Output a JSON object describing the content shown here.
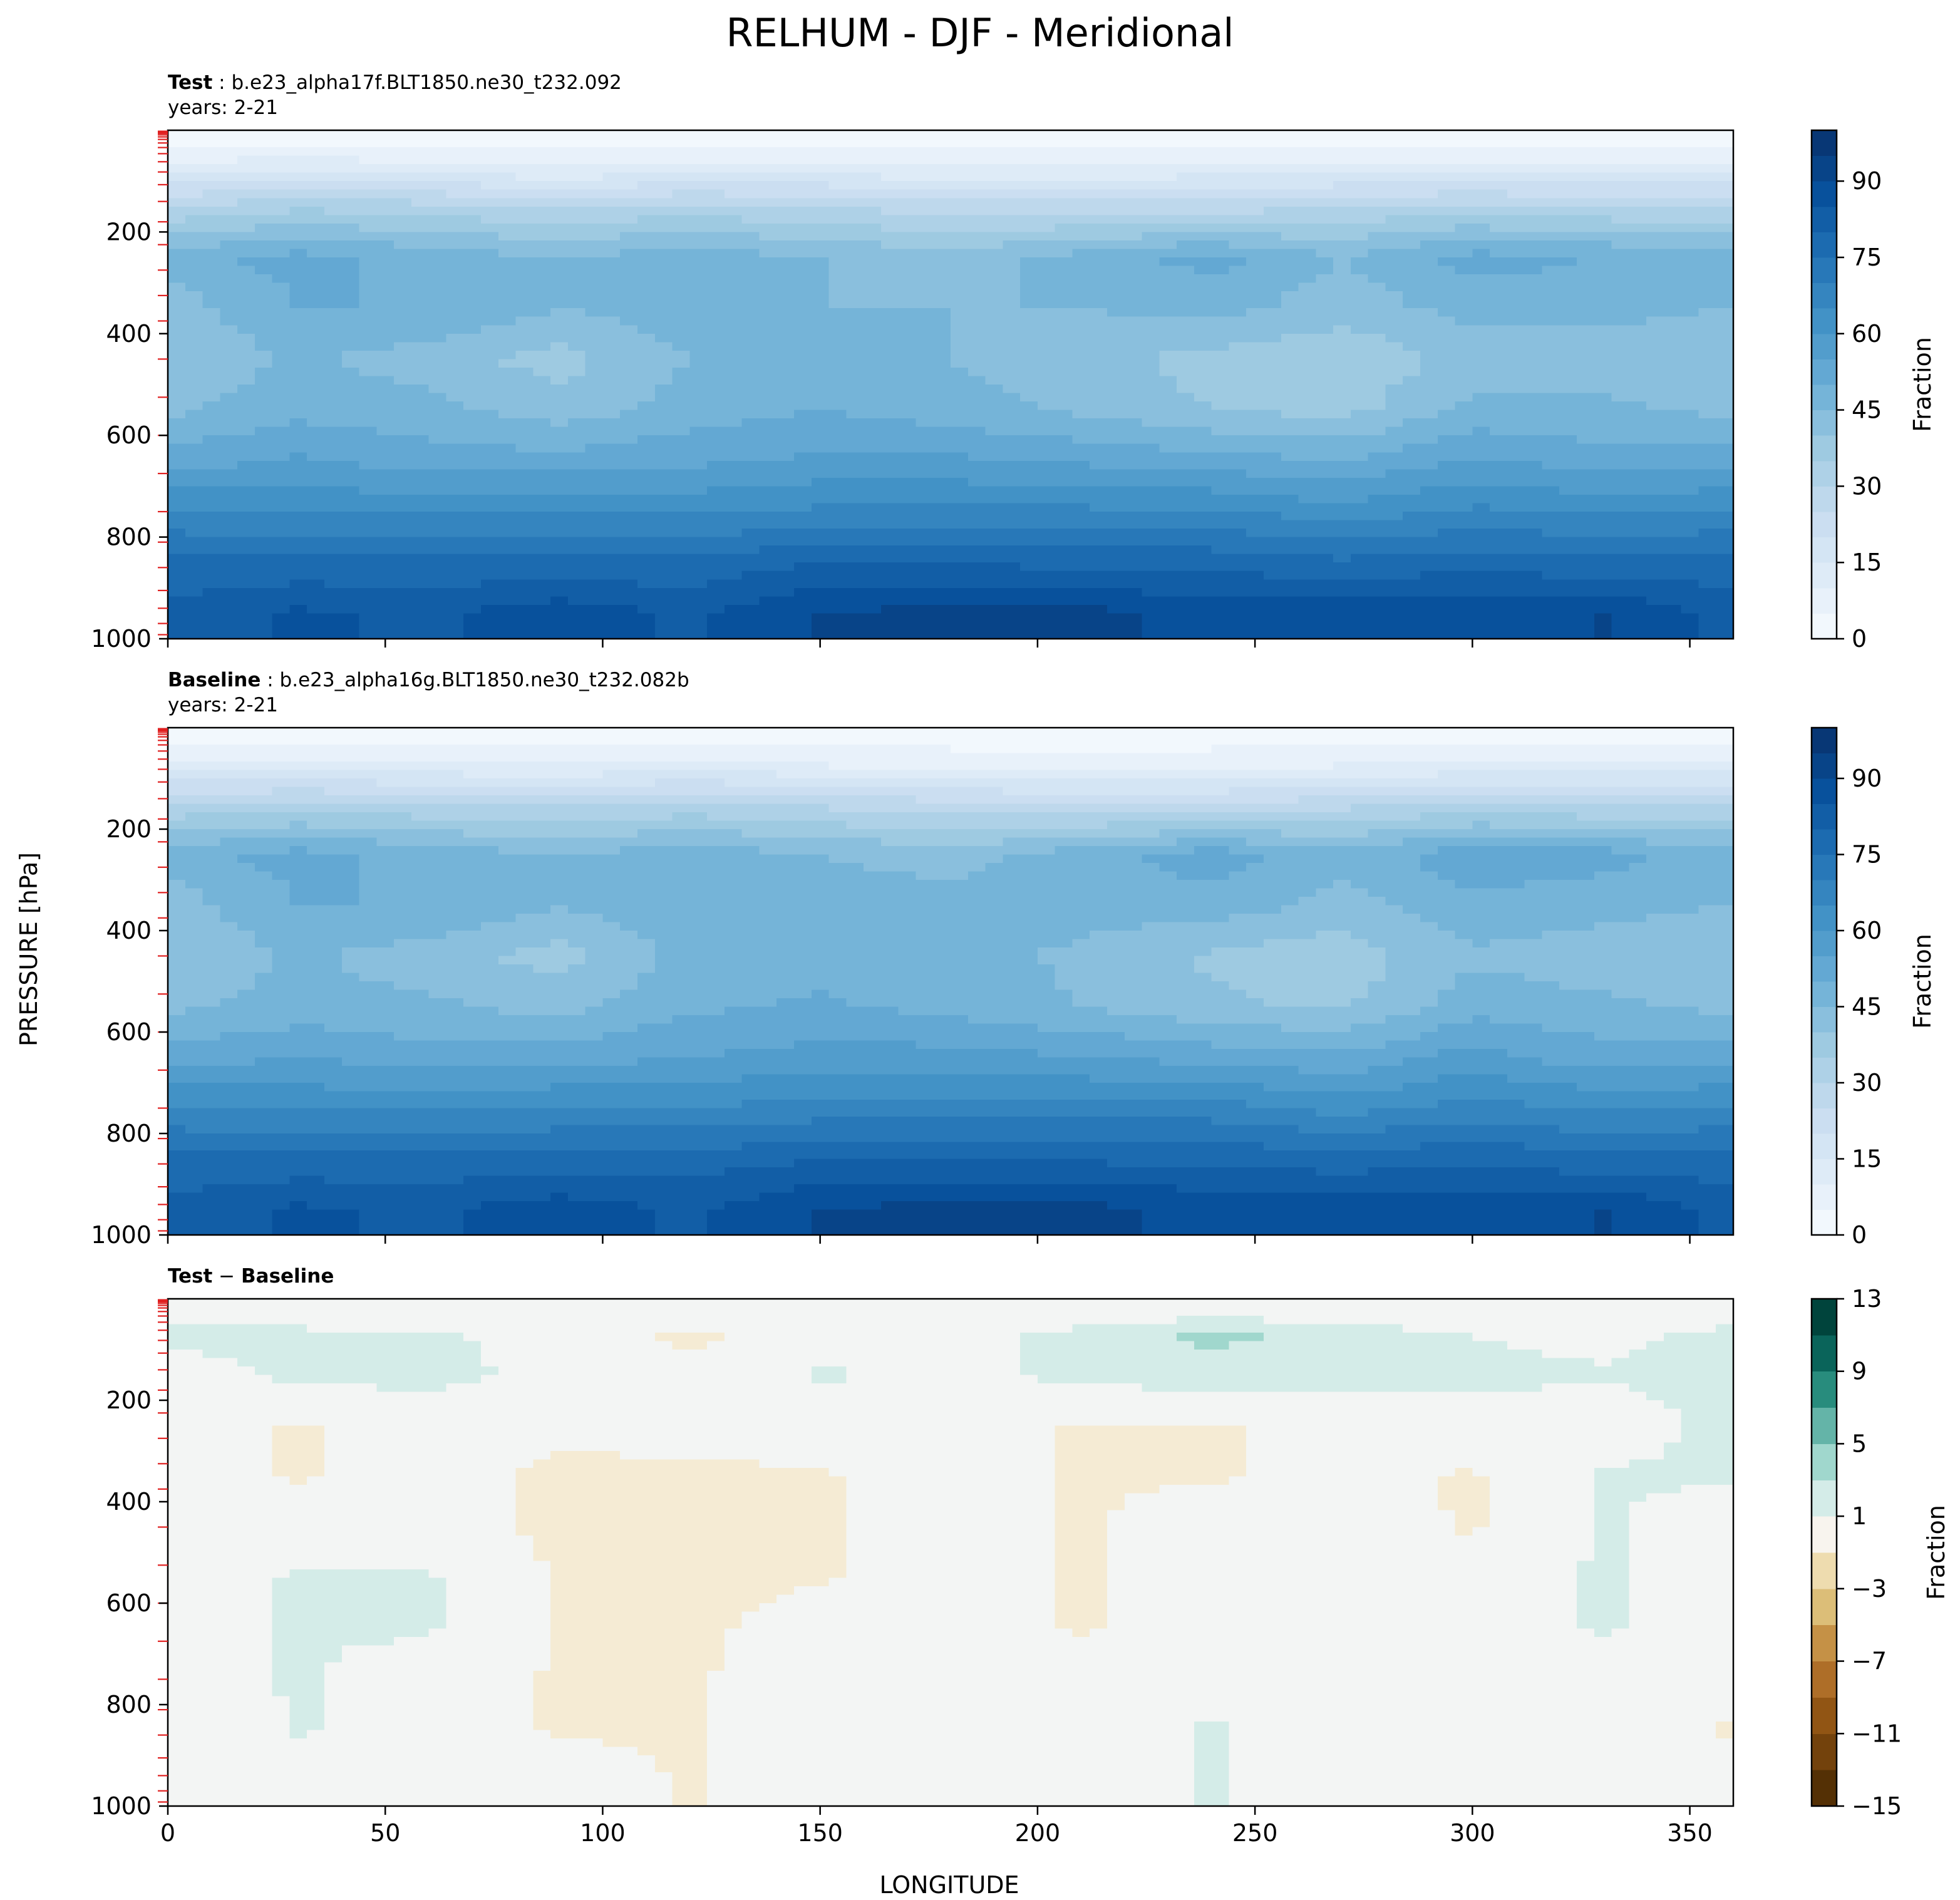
{
  "figure": {
    "title": "RELHUM - DJF - Meridional",
    "ylabel": "PRESSURE [hPa]",
    "xlabel": "LONGITUDE"
  },
  "panels": [
    {
      "label": "Test",
      "case": "b.e23_alpha17f.BLT1850.ne30_t232.092",
      "years": "years: 2-21",
      "colorbar_label": "Fraction",
      "colorbar_ticks": [
        "0",
        "15",
        "30",
        "45",
        "60",
        "75",
        "90"
      ]
    },
    {
      "label": "Baseline",
      "case": "b.e23_alpha16g.BLT1850.ne30_t232.082b",
      "years": "years: 2-21",
      "colorbar_label": "Fraction",
      "colorbar_ticks": [
        "0",
        "15",
        "30",
        "45",
        "60",
        "75",
        "90"
      ]
    },
    {
      "label_a": "Test",
      "minus": " − ",
      "label_b": "Baseline",
      "colorbar_label": "Fraction",
      "colorbar_ticks": [
        "−15",
        "−11",
        "−7",
        "−3",
        "1",
        "5",
        "9",
        "13"
      ]
    }
  ],
  "chart_data": [
    {
      "type": "heatmap",
      "title": "Test : b.e23_alpha17f.BLT1850.ne30_t232.092",
      "subtitle": "years: 2-21",
      "xlim": [
        0,
        360
      ],
      "ylim": [
        1000,
        0
      ],
      "xticks": [
        0,
        50,
        100,
        150,
        200,
        250,
        300,
        350
      ],
      "yticks": [
        200,
        400,
        600,
        800,
        1000
      ],
      "colorbar": {
        "label": "Fraction",
        "min": 0,
        "max": 100,
        "step": 5,
        "ticks": [
          0,
          15,
          30,
          45,
          60,
          75,
          90
        ],
        "colormap": "Blues"
      },
      "x": [
        0,
        30,
        60,
        90,
        120,
        150,
        180,
        210,
        240,
        270,
        300,
        330,
        358
      ],
      "y": [
        25,
        75,
        150,
        250,
        350,
        450,
        550,
        650,
        750,
        850,
        950
      ],
      "z": [
        [
          3,
          4,
          3,
          3,
          4,
          3,
          3,
          3,
          3,
          3,
          3,
          3,
          3
        ],
        [
          12,
          14,
          12,
          10,
          12,
          12,
          10,
          10,
          12,
          12,
          12,
          12,
          12
        ],
        [
          30,
          34,
          32,
          30,
          32,
          30,
          27,
          27,
          27,
          30,
          32,
          30,
          30
        ],
        [
          48,
          52,
          48,
          45,
          48,
          45,
          42,
          47,
          52,
          45,
          52,
          50,
          48
        ],
        [
          42,
          50,
          50,
          45,
          48,
          45,
          45,
          45,
          47,
          42,
          47,
          47,
          45
        ],
        [
          40,
          46,
          42,
          38,
          45,
          45,
          45,
          42,
          38,
          36,
          42,
          42,
          40
        ],
        [
          44,
          48,
          47,
          42,
          47,
          50,
          47,
          44,
          40,
          38,
          46,
          46,
          44
        ],
        [
          52,
          56,
          52,
          52,
          54,
          56,
          56,
          54,
          52,
          50,
          56,
          52,
          52
        ],
        [
          66,
          64,
          64,
          64,
          64,
          66,
          66,
          66,
          66,
          62,
          66,
          64,
          66
        ],
        [
          76,
          76,
          76,
          76,
          76,
          80,
          80,
          78,
          78,
          76,
          78,
          76,
          76
        ],
        [
          82,
          86,
          84,
          88,
          84,
          90,
          92,
          92,
          88,
          88,
          88,
          90,
          84
        ]
      ]
    },
    {
      "type": "heatmap",
      "title": "Baseline : b.e23_alpha16g.BLT1850.ne30_t232.082b",
      "subtitle": "years: 2-21",
      "xlim": [
        0,
        360
      ],
      "ylim": [
        1000,
        0
      ],
      "xticks": [
        0,
        50,
        100,
        150,
        200,
        250,
        300,
        350
      ],
      "yticks": [
        200,
        400,
        600,
        800,
        1000
      ],
      "colorbar": {
        "label": "Fraction",
        "min": 0,
        "max": 100,
        "step": 5,
        "ticks": [
          0,
          15,
          30,
          45,
          60,
          75,
          90
        ],
        "colormap": "Blues"
      },
      "x": [
        0,
        30,
        60,
        90,
        120,
        150,
        180,
        210,
        240,
        270,
        300,
        330,
        358
      ],
      "y": [
        25,
        75,
        150,
        250,
        350,
        450,
        550,
        650,
        750,
        850,
        950
      ],
      "z": [
        [
          3,
          4,
          3,
          3,
          4,
          3,
          3,
          3,
          3,
          3,
          3,
          3,
          3
        ],
        [
          12,
          12,
          11,
          10,
          12,
          10,
          9,
          8,
          9,
          10,
          11,
          11,
          11
        ],
        [
          30,
          32,
          30,
          29,
          31,
          29,
          26,
          25,
          25,
          28,
          31,
          29,
          29
        ],
        [
          48,
          52,
          48,
          45,
          48,
          45,
          43,
          48,
          53,
          47,
          53,
          52,
          48
        ],
        [
          42,
          50,
          50,
          45,
          49,
          47,
          47,
          47,
          48,
          43,
          49,
          47,
          45
        ],
        [
          40,
          46,
          42,
          38,
          47,
          47,
          47,
          44,
          39,
          37,
          44,
          42,
          40
        ],
        [
          44,
          47,
          46,
          43,
          49,
          51,
          48,
          45,
          41,
          39,
          48,
          46,
          44
        ],
        [
          52,
          55,
          52,
          53,
          55,
          57,
          57,
          55,
          53,
          51,
          57,
          52,
          52
        ],
        [
          66,
          64,
          64,
          65,
          65,
          67,
          67,
          67,
          67,
          63,
          67,
          64,
          66
        ],
        [
          76,
          76,
          76,
          77,
          77,
          80,
          80,
          79,
          79,
          77,
          79,
          76,
          76
        ],
        [
          82,
          86,
          84,
          88,
          84,
          90,
          92,
          92,
          88,
          88,
          88,
          90,
          84
        ]
      ]
    },
    {
      "type": "heatmap",
      "title": "Test − Baseline",
      "xlim": [
        0,
        360
      ],
      "ylim": [
        1000,
        0
      ],
      "xticks": [
        0,
        50,
        100,
        150,
        200,
        250,
        300,
        350
      ],
      "yticks": [
        200,
        400,
        600,
        800,
        1000
      ],
      "colorbar": {
        "label": "Fraction",
        "min": -15,
        "max": 13,
        "step": 2,
        "ticks": [
          -15,
          -11,
          -7,
          -3,
          1,
          5,
          9,
          13
        ],
        "colormap": "BrBG"
      },
      "x": [
        0,
        30,
        60,
        90,
        120,
        150,
        180,
        210,
        240,
        270,
        300,
        330,
        358
      ],
      "y": [
        25,
        75,
        150,
        250,
        350,
        450,
        550,
        650,
        750,
        850,
        950
      ],
      "z": [
        [
          0,
          0,
          0,
          0,
          0,
          0,
          0,
          0,
          0,
          0,
          0,
          0,
          0
        ],
        [
          1.5,
          1.5,
          1.2,
          0.5,
          -1.5,
          0.5,
          0.5,
          1.5,
          3.5,
          2,
          1,
          0.5,
          1.5
        ],
        [
          0,
          1.5,
          1.5,
          0.5,
          0,
          1.2,
          0.5,
          1.5,
          2,
          1.5,
          1.5,
          1.2,
          1.5
        ],
        [
          0,
          -1.2,
          0,
          -0.5,
          0,
          0,
          0,
          -1.2,
          -1.2,
          -0.5,
          0,
          0,
          1.5
        ],
        [
          0,
          -1.2,
          0,
          -1.5,
          -1.5,
          -1.2,
          0,
          -1.2,
          -1.2,
          -0.5,
          -1.2,
          1.2,
          1.2
        ],
        [
          0,
          0,
          0,
          -1.5,
          -1.5,
          -1.2,
          0,
          -1.2,
          0,
          0,
          -1.2,
          1.2,
          0
        ],
        [
          0,
          1.2,
          1.2,
          -1.2,
          -1.5,
          -1.2,
          0,
          -1.2,
          0,
          0,
          0,
          1.2,
          0
        ],
        [
          0,
          1.2,
          1.2,
          -1.2,
          -1.5,
          0,
          0,
          -1.2,
          0,
          0,
          0,
          1.2,
          0
        ],
        [
          0,
          1.2,
          0,
          -1.2,
          -1.2,
          0,
          0,
          0,
          0,
          0,
          0,
          0,
          0
        ],
        [
          -1.2,
          1.2,
          0,
          -1.2,
          -1.2,
          0,
          0,
          0,
          1.2,
          0,
          0,
          0,
          -1.2
        ],
        [
          0,
          0,
          0,
          0,
          -1.2,
          0,
          0,
          0,
          1.2,
          0,
          0,
          0,
          0
        ]
      ]
    }
  ]
}
